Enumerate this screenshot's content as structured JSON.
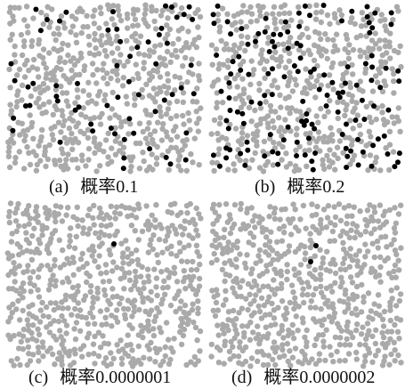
{
  "colors": {
    "background": "#ffffff",
    "point": "#aaaaaa",
    "highlight": "#000000",
    "caption_text": "#111111"
  },
  "chart_data": [
    {
      "type": "scatter",
      "label": "(a)",
      "caption": "概率0.1",
      "grid": false
    },
    {
      "type": "scatter",
      "label": "(b)",
      "caption": "概率0.2",
      "grid": false
    },
    {
      "type": "scatter",
      "label": "(c)",
      "caption": "概率0.0000001",
      "grid": false
    },
    {
      "type": "scatter",
      "label": "(d)",
      "caption": "概率0.0000002",
      "grid": false
    }
  ]
}
